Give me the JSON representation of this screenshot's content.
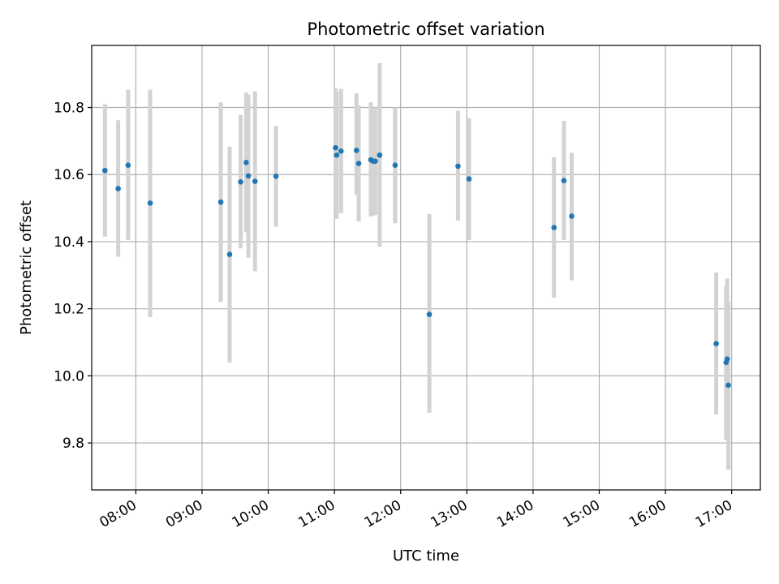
{
  "chart_data": {
    "type": "scatter",
    "title": "Photometric offset variation",
    "xlabel": "UTC time",
    "ylabel": "Photometric offset",
    "x_axis": {
      "kind": "time",
      "unit": "hours UTC",
      "xlim": [
        "07:20",
        "17:26"
      ],
      "ticks": [
        {
          "value": "08:00",
          "label": "08:00"
        },
        {
          "value": "09:00",
          "label": "09:00"
        },
        {
          "value": "10:00",
          "label": "10:00"
        },
        {
          "value": "11:00",
          "label": "11:00"
        },
        {
          "value": "12:00",
          "label": "12:00"
        },
        {
          "value": "13:00",
          "label": "13:00"
        },
        {
          "value": "14:00",
          "label": "14:00"
        },
        {
          "value": "15:00",
          "label": "15:00"
        },
        {
          "value": "16:00",
          "label": "16:00"
        },
        {
          "value": "17:00",
          "label": "17:00"
        }
      ],
      "tick_label_rotation": "30 degrees"
    },
    "y_axis": {
      "ylim": [
        9.66,
        10.985
      ],
      "ticks": [
        9.8,
        10.0,
        10.2,
        10.4,
        10.6,
        10.8
      ],
      "tick_labels": [
        "9.8",
        "10.0",
        "10.2",
        "10.4",
        "10.6",
        "10.8"
      ]
    },
    "grid": true,
    "colors": {
      "point": "#1f77b4",
      "errorbar": "#d3d3d3",
      "grid": "#b0b0b0"
    },
    "series": [
      {
        "points": [
          {
            "x": "07:32",
            "y": 10.612,
            "lo": 10.415,
            "hi": 10.81
          },
          {
            "x": "07:44",
            "y": 10.558,
            "lo": 10.355,
            "hi": 10.762
          },
          {
            "x": "07:53",
            "y": 10.628,
            "lo": 10.405,
            "hi": 10.853
          },
          {
            "x": "08:13",
            "y": 10.515,
            "lo": 10.175,
            "hi": 10.853
          },
          {
            "x": "09:17",
            "y": 10.518,
            "lo": 10.22,
            "hi": 10.815
          },
          {
            "x": "09:25",
            "y": 10.362,
            "lo": 10.04,
            "hi": 10.683
          },
          {
            "x": "09:35",
            "y": 10.578,
            "lo": 10.38,
            "hi": 10.778
          },
          {
            "x": "09:40",
            "y": 10.636,
            "lo": 10.428,
            "hi": 10.845
          },
          {
            "x": "09:42",
            "y": 10.596,
            "lo": 10.352,
            "hi": 10.838
          },
          {
            "x": "09:48",
            "y": 10.58,
            "lo": 10.312,
            "hi": 10.848
          },
          {
            "x": "10:07",
            "y": 10.595,
            "lo": 10.445,
            "hi": 10.745
          },
          {
            "x": "11:01",
            "y": 10.68,
            "lo": 10.5,
            "hi": 10.858
          },
          {
            "x": "11:02",
            "y": 10.658,
            "lo": 10.468,
            "hi": 10.848
          },
          {
            "x": "11:06",
            "y": 10.67,
            "lo": 10.485,
            "hi": 10.855
          },
          {
            "x": "11:20",
            "y": 10.672,
            "lo": 10.54,
            "hi": 10.842
          },
          {
            "x": "11:22",
            "y": 10.633,
            "lo": 10.46,
            "hi": 10.806
          },
          {
            "x": "11:33",
            "y": 10.644,
            "lo": 10.475,
            "hi": 10.815
          },
          {
            "x": "11:35",
            "y": 10.64,
            "lo": 10.478,
            "hi": 10.8
          },
          {
            "x": "11:37",
            "y": 10.64,
            "lo": 10.48,
            "hi": 10.8
          },
          {
            "x": "11:41",
            "y": 10.658,
            "lo": 10.385,
            "hi": 10.932
          },
          {
            "x": "11:55",
            "y": 10.628,
            "lo": 10.455,
            "hi": 10.8
          },
          {
            "x": "12:26",
            "y": 10.183,
            "lo": 9.89,
            "hi": 10.482
          },
          {
            "x": "12:52",
            "y": 10.625,
            "lo": 10.463,
            "hi": 10.79
          },
          {
            "x": "13:02",
            "y": 10.587,
            "lo": 10.405,
            "hi": 10.768
          },
          {
            "x": "14:19",
            "y": 10.442,
            "lo": 10.233,
            "hi": 10.652
          },
          {
            "x": "14:28",
            "y": 10.582,
            "lo": 10.405,
            "hi": 10.76
          },
          {
            "x": "14:35",
            "y": 10.476,
            "lo": 10.285,
            "hi": 10.665
          },
          {
            "x": "16:46",
            "y": 10.096,
            "lo": 9.885,
            "hi": 10.308
          },
          {
            "x": "16:55",
            "y": 10.04,
            "lo": 9.81,
            "hi": 10.268
          },
          {
            "x": "16:56",
            "y": 10.05,
            "lo": 9.81,
            "hi": 10.29
          },
          {
            "x": "16:57",
            "y": 9.972,
            "lo": 9.72,
            "hi": 10.222
          }
        ]
      }
    ]
  }
}
